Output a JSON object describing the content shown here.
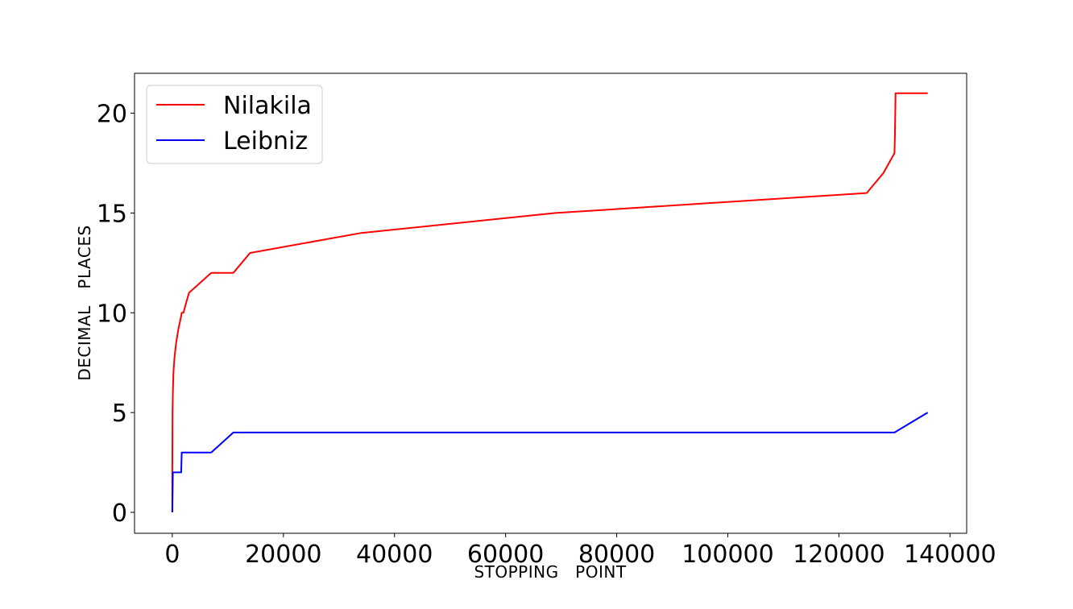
{
  "chart_data": {
    "type": "line",
    "title": "",
    "xlabel": "STOPPING   POINT",
    "ylabel": "DECIMAL   PLACES",
    "xlim": [
      -6800,
      143000
    ],
    "ylim": [
      -1.05,
      22
    ],
    "xticks": [
      0,
      20000,
      40000,
      60000,
      80000,
      100000,
      120000,
      140000
    ],
    "yticks": [
      0,
      5,
      10,
      15,
      20
    ],
    "grid": false,
    "legend": "top-left",
    "series": [
      {
        "name": "Nilakila",
        "color": "#ff0000",
        "points": [
          [
            0,
            0
          ],
          [
            5,
            2
          ],
          [
            10,
            3
          ],
          [
            25,
            4
          ],
          [
            50,
            5
          ],
          [
            100,
            6
          ],
          [
            200,
            7
          ],
          [
            400,
            7.8
          ],
          [
            700,
            8.5
          ],
          [
            1100,
            9.2
          ],
          [
            1500,
            9.7
          ],
          [
            1700,
            10
          ],
          [
            2000,
            10
          ],
          [
            2500,
            10.5
          ],
          [
            3000,
            11
          ],
          [
            7000,
            12
          ],
          [
            11000,
            12
          ],
          [
            14000,
            13
          ],
          [
            34000,
            14
          ],
          [
            69000,
            15
          ],
          [
            125000,
            16
          ],
          [
            128000,
            17
          ],
          [
            130000,
            18
          ],
          [
            130100,
            19
          ],
          [
            130200,
            21
          ],
          [
            136000,
            21
          ]
        ]
      },
      {
        "name": "Leibniz",
        "color": "#0000ff",
        "points": [
          [
            0,
            0
          ],
          [
            100,
            2
          ],
          [
            1600,
            2
          ],
          [
            1700,
            3
          ],
          [
            7000,
            3
          ],
          [
            11000,
            4
          ],
          [
            130000,
            4
          ],
          [
            136000,
            5
          ]
        ]
      }
    ]
  }
}
